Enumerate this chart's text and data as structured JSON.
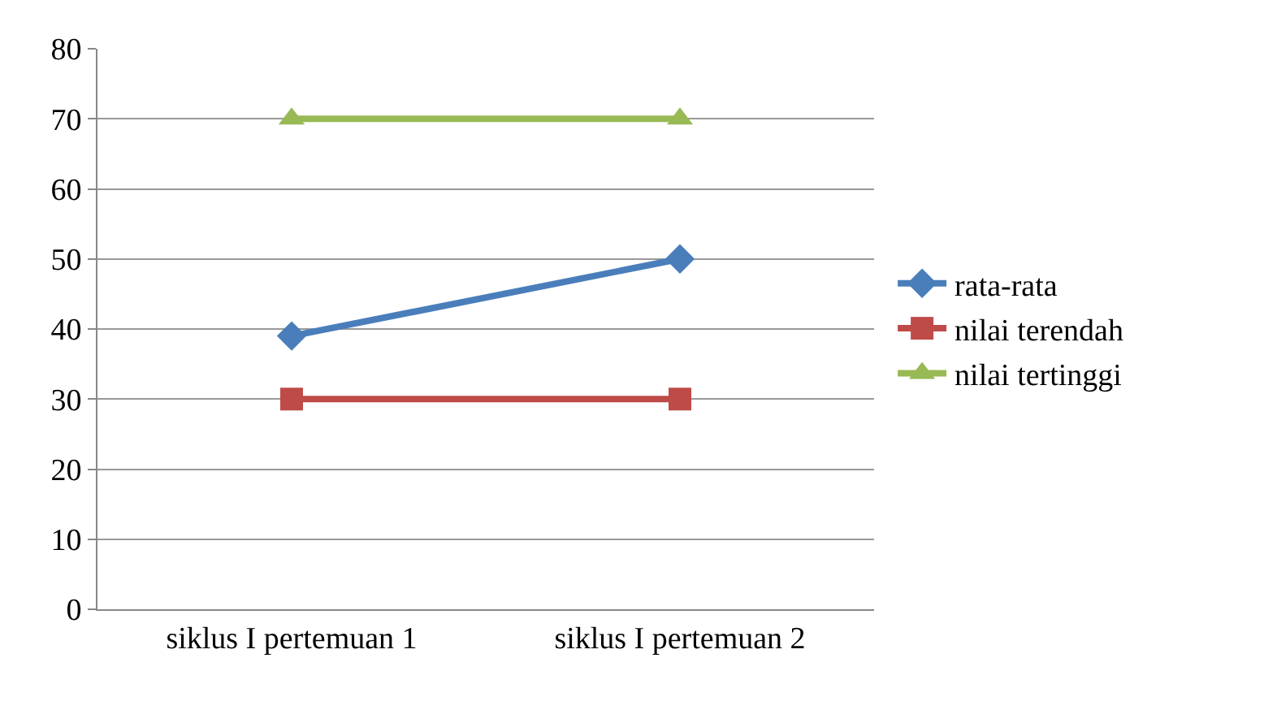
{
  "chart_data": {
    "type": "line",
    "categories": [
      "siklus I pertemuan 1",
      "siklus I pertemuan 2"
    ],
    "series": [
      {
        "name": "rata-rata",
        "color": "#4a7ebb",
        "values": [
          39,
          50
        ],
        "marker": "diamond"
      },
      {
        "name": "nilai terendah",
        "color": "#be4b48",
        "values": [
          30,
          30
        ],
        "marker": "square"
      },
      {
        "name": "nilai tertinggi",
        "color": "#98b954",
        "values": [
          70,
          70
        ],
        "marker": "triangle"
      }
    ],
    "ylim": [
      0,
      80
    ],
    "yticks": [
      0,
      10,
      20,
      30,
      40,
      50,
      60,
      70,
      80
    ],
    "grid": "y",
    "legend": "right"
  }
}
